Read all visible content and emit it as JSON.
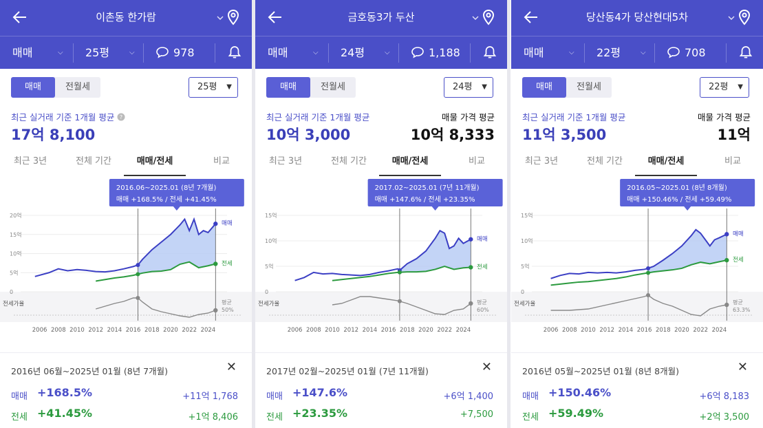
{
  "colors": {
    "header_bg": "#4a4fc8",
    "sale_line": "#3b3fc4",
    "sale_fill": "#b8ccf5",
    "jeonse_line": "#2b9a3e",
    "ratio_line": "#888888",
    "tooltip_bg": "#5a62d8"
  },
  "icons": [
    "back-arrow-icon",
    "chevron-down-icon",
    "map-pin-icon",
    "chat-bubble-icon",
    "bell-icon",
    "close-icon"
  ],
  "panels": [
    {
      "header": {
        "title": "이촌동 한가람",
        "deal": "매매",
        "size": "25평",
        "comments": "978"
      },
      "toggle": {
        "on": "매매",
        "off": "전월세"
      },
      "size_select": "25평",
      "recent_label": "최근 실거래 기준 1개월 평균",
      "recent_value": "17억 8,100",
      "listing_label": "",
      "listing_value": "",
      "tabs": [
        "최근 3년",
        "전체 기간",
        "매매/전세",
        "비교"
      ],
      "tooltip": {
        "range": "2016.06~2025.01 (8년 7개월)",
        "change": "매매 +168.5%  /  전세 +41.45%"
      },
      "footer": {
        "range": "2016년 06월~2025년 01월 (8년 7개월)",
        "sale_label": "매매",
        "sale_pct": "+168.5%",
        "sale_amount": "+11억 1,768",
        "jeonse_label": "전세",
        "jeonse_pct": "+41.45%",
        "jeonse_amount": "+1억 8,406"
      }
    },
    {
      "header": {
        "title": "금호동3가 두산",
        "deal": "매매",
        "size": "24평",
        "comments": "1,188"
      },
      "toggle": {
        "on": "매매",
        "off": "전월세"
      },
      "size_select": "24평",
      "recent_label": "최근 실거래 기준 1개월 평균",
      "recent_value": "10억 3,000",
      "listing_label": "매물 가격 평균",
      "listing_value": "10억 8,333",
      "tabs": [
        "최근 3년",
        "전체 기간",
        "매매/전세",
        "비교"
      ],
      "tooltip": {
        "range": "2017.02~2025.01 (7년 11개월)",
        "change": "매매 +147.6%  /  전세 +23.35%"
      },
      "footer": {
        "range": "2017년 02월~2025년 01월 (7년 11개월)",
        "sale_label": "매매",
        "sale_pct": "+147.6%",
        "sale_amount": "+6억 1,400",
        "jeonse_label": "전세",
        "jeonse_pct": "+23.35%",
        "jeonse_amount": "+7,500"
      }
    },
    {
      "header": {
        "title": "당산동4가 당산현대5차",
        "deal": "매매",
        "size": "22평",
        "comments": "708"
      },
      "toggle": {
        "on": "매매",
        "off": "전월세"
      },
      "size_select": "22평",
      "recent_label": "최근 실거래 기준 1개월 평균",
      "recent_value": "11억 3,500",
      "listing_label": "매물 가격 평균",
      "listing_value": "11억",
      "tabs": [
        "최근 3년",
        "전체 기간",
        "매매/전세",
        "비교"
      ],
      "tooltip": {
        "range": "2016.05~2025.01 (8년 8개월)",
        "change": "매매 +150.46%  /  전세 +59.49%"
      },
      "footer": {
        "range": "2016년 05월~2025년 01월 (8년 8개월)",
        "sale_label": "매매",
        "sale_pct": "+150.46%",
        "sale_amount": "+6억 8,183",
        "jeonse_label": "전세",
        "jeonse_pct": "+59.49%",
        "jeonse_amount": "+2억 3,500"
      }
    }
  ],
  "chart_data": [
    {
      "type": "line",
      "x_ticks": [
        "2006",
        "2008",
        "2010",
        "2012",
        "2014",
        "2016",
        "2018",
        "2020",
        "2022",
        "2024"
      ],
      "y_ticks": [
        "20억",
        "15억",
        "10억",
        "5억",
        "0"
      ],
      "ylim": [
        0,
        20
      ],
      "series_labels": {
        "sale": "매매",
        "jeonse": "전세"
      },
      "ratio_label": "전세가율",
      "ratio_end_label": "평균",
      "ratio_end_value": "50%",
      "sale": {
        "x": [
          2005.5,
          2007,
          2008,
          2009,
          2010,
          2011,
          2012,
          2013,
          2014,
          2015,
          2016,
          2016.5,
          2017,
          2018,
          2019,
          2020,
          2021,
          2021.5,
          2022,
          2022.5,
          2023,
          2023.5,
          2024,
          2024.8
        ],
        "y": [
          4,
          5,
          6,
          5.5,
          5.8,
          5.6,
          5.3,
          5.2,
          5.5,
          6,
          6.6,
          7,
          8.5,
          11,
          13,
          15,
          17.5,
          19,
          16,
          19,
          15,
          16,
          15.5,
          17.8
        ]
      },
      "jeonse": {
        "x": [
          2012,
          2013,
          2014,
          2015,
          2016,
          2016.5,
          2017,
          2018,
          2019,
          2020,
          2021,
          2022,
          2023,
          2024,
          2024.8
        ],
        "y": [
          2.8,
          3.2,
          3.6,
          3.9,
          4.3,
          4.6,
          4.9,
          5.3,
          5.4,
          5.8,
          7.2,
          7.8,
          6.3,
          6.8,
          7.3
        ]
      },
      "ratio": {
        "x": [
          2012,
          2013,
          2014,
          2015,
          2016,
          2016.5,
          2017,
          2018,
          2019,
          2020,
          2021,
          2022,
          2023,
          2024,
          2024.8
        ],
        "y": [
          52,
          56,
          60,
          63,
          68,
          68,
          62,
          52,
          48,
          45,
          42,
          40,
          44,
          46,
          50
        ]
      }
    },
    {
      "type": "line",
      "x_ticks": [
        "2006",
        "2008",
        "2010",
        "2012",
        "2014",
        "2016",
        "2018",
        "2020",
        "2022",
        "2024"
      ],
      "y_ticks": [
        "15억",
        "10억",
        "5억",
        "0"
      ],
      "ylim": [
        0,
        15
      ],
      "series_labels": {
        "sale": "매매",
        "jeonse": "전세"
      },
      "ratio_label": "전세가율",
      "ratio_end_label": "평균",
      "ratio_end_value": "60%",
      "sale": {
        "x": [
          2006,
          2007,
          2008,
          2009,
          2010,
          2011,
          2012,
          2013,
          2014,
          2015,
          2016,
          2017,
          2017.2,
          2018,
          2019,
          2020,
          2021,
          2021.5,
          2022,
          2022.5,
          2023,
          2023.5,
          2024,
          2024.8
        ],
        "y": [
          2.2,
          2.8,
          3.8,
          3.5,
          3.6,
          3.4,
          3.3,
          3.2,
          3.4,
          3.8,
          4.1,
          4.5,
          4.2,
          5.5,
          6.5,
          8,
          10.5,
          12,
          11.5,
          8.5,
          9,
          10.5,
          9.5,
          10.3
        ]
      },
      "jeonse": {
        "x": [
          2010,
          2011,
          2012,
          2013,
          2014,
          2015,
          2016,
          2017,
          2018,
          2019,
          2020,
          2021,
          2022,
          2023,
          2024,
          2024.8
        ],
        "y": [
          2.2,
          2.4,
          2.6,
          2.8,
          3,
          3.3,
          3.6,
          3.8,
          3.9,
          3.9,
          4,
          4.4,
          5,
          4.4,
          4.7,
          4.8
        ]
      },
      "ratio": {
        "x": [
          2010,
          2011,
          2012,
          2013,
          2014,
          2015,
          2016,
          2017,
          2018,
          2019,
          2020,
          2021,
          2022,
          2023,
          2024,
          2024.8
        ],
        "y": [
          58,
          60,
          65,
          70,
          70,
          68,
          66,
          64,
          60,
          55,
          50,
          45,
          44,
          50,
          52,
          60
        ]
      }
    },
    {
      "type": "line",
      "x_ticks": [
        "2006",
        "2008",
        "2010",
        "2012",
        "2014",
        "2016",
        "2018",
        "2020",
        "2022",
        "2024"
      ],
      "y_ticks": [
        "15억",
        "10억",
        "5억",
        "0"
      ],
      "ylim": [
        0,
        15
      ],
      "series_labels": {
        "sale": "매매",
        "jeonse": "전세"
      },
      "ratio_label": "전세가율",
      "ratio_end_label": "평균",
      "ratio_end_value": "63.3%",
      "sale": {
        "x": [
          2006,
          2007,
          2008,
          2009,
          2010,
          2011,
          2012,
          2013,
          2014,
          2015,
          2016,
          2016.4,
          2017,
          2018,
          2019,
          2020,
          2021,
          2021.5,
          2022,
          2023,
          2023.5,
          2024,
          2024.8
        ],
        "y": [
          2.6,
          3.2,
          3.6,
          3.5,
          3.8,
          3.7,
          3.8,
          3.7,
          3.9,
          4.2,
          4.4,
          4.6,
          5,
          6.2,
          7.5,
          9,
          11,
          12.2,
          11.5,
          9,
          10.2,
          10.6,
          11.3
        ]
      },
      "jeonse": {
        "x": [
          2006,
          2007,
          2008,
          2009,
          2010,
          2011,
          2012,
          2013,
          2014,
          2015,
          2016,
          2017,
          2018,
          2019,
          2020,
          2021,
          2022,
          2023,
          2024,
          2024.8
        ],
        "y": [
          1.3,
          1.5,
          1.7,
          1.9,
          2,
          2.2,
          2.4,
          2.6,
          2.9,
          3.3,
          3.6,
          3.9,
          4.1,
          4.3,
          4.6,
          5.3,
          5.8,
          5.5,
          5.9,
          6.2
        ]
      },
      "ratio": {
        "x": [
          2006,
          2008,
          2010,
          2012,
          2014,
          2016,
          2016.4,
          2017,
          2018,
          2019,
          2020,
          2021,
          2022,
          2023,
          2024,
          2024.8
        ],
        "y": [
          50,
          50,
          52,
          58,
          64,
          70,
          72,
          66,
          60,
          56,
          50,
          44,
          42,
          52,
          56,
          58
        ]
      }
    }
  ]
}
